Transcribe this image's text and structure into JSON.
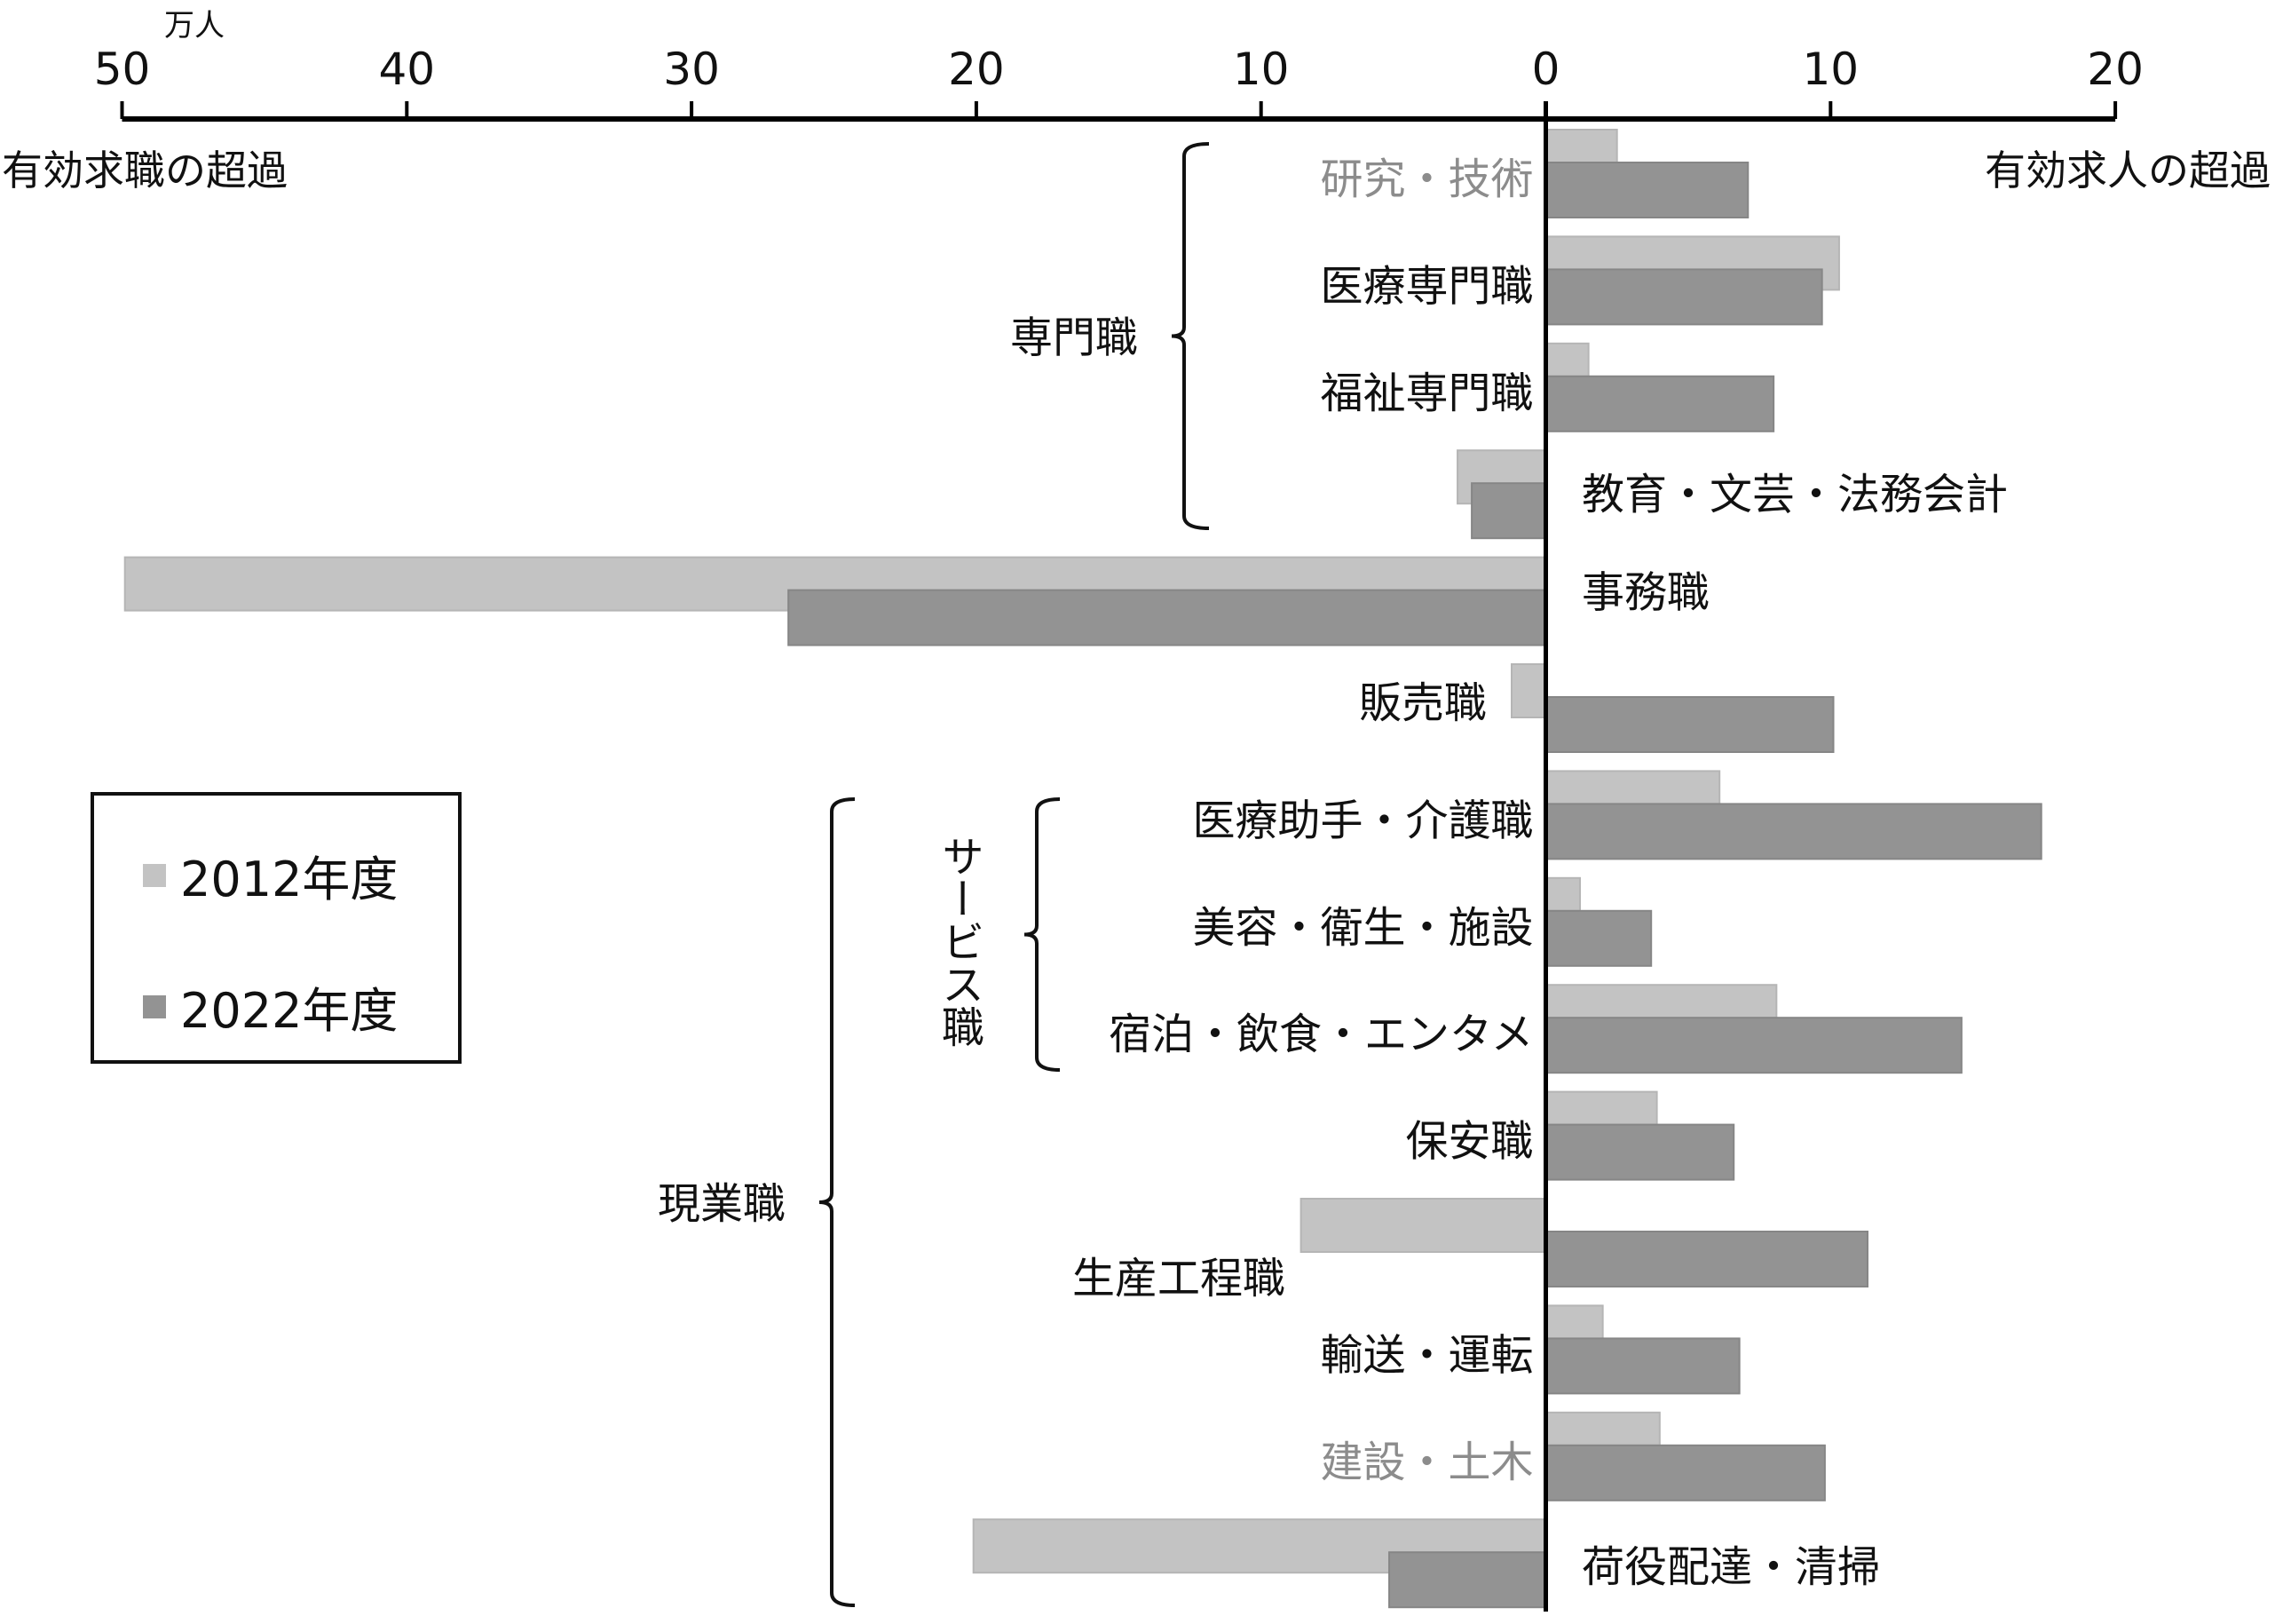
{
  "chart_data": {
    "type": "bar",
    "orientation": "horizontal",
    "title": "",
    "unit": "万人",
    "xlabel_left": "有効求職の超過",
    "xlabel_right": "有効求人の超過",
    "xlim": [
      -50,
      20
    ],
    "xticks": [
      -50,
      -40,
      -30,
      -20,
      -10,
      0,
      10,
      20
    ],
    "xtick_labels": [
      "50",
      "40",
      "30",
      "20",
      "10",
      "0",
      "10",
      "20"
    ],
    "grid": false,
    "legend_position": "left-middle",
    "categories": [
      "研究・技術",
      "医療専門職",
      "福祉専門職",
      "教育・文芸・法務会計",
      "事務職",
      "販売職",
      "医療助手・介護職",
      "美容・衛生・施設",
      "宿泊・飲食・エンタメ",
      "保安職",
      "生産工程職",
      "輸送・運転",
      "建設・土木",
      "荷役配達・清掃"
    ],
    "series": [
      {
        "name": "2012年度",
        "color": "#c3c3c3",
        "values": [
          2.5,
          10.3,
          1.5,
          -3.1,
          -49.9,
          -1.2,
          6.1,
          1.2,
          8.1,
          3.9,
          -8.6,
          2.0,
          4.0,
          -20.1
        ]
      },
      {
        "name": "2022年度",
        "color": "#939393",
        "values": [
          7.1,
          9.7,
          8.0,
          -2.6,
          -26.6,
          10.1,
          17.4,
          3.7,
          14.6,
          6.6,
          11.3,
          6.8,
          9.8,
          -5.5
        ]
      }
    ],
    "category_label_side": [
      "left",
      "left",
      "left",
      "right",
      "right",
      "left",
      "left",
      "left",
      "left",
      "left",
      "left",
      "left",
      "left",
      "right"
    ],
    "category_label_muted": [
      true,
      false,
      false,
      false,
      false,
      false,
      false,
      false,
      false,
      false,
      false,
      false,
      true,
      false
    ],
    "groups": [
      {
        "label": "専門職",
        "from": 0,
        "to": 3
      },
      {
        "label": "サービス職",
        "from": 6,
        "to": 8,
        "vertical": true
      },
      {
        "label": "現業職",
        "from": 6,
        "to": 13
      }
    ]
  },
  "legend": {
    "items": [
      {
        "label": "2012年度",
        "color": "#c3c3c3"
      },
      {
        "label": "2022年度",
        "color": "#939393"
      }
    ]
  }
}
